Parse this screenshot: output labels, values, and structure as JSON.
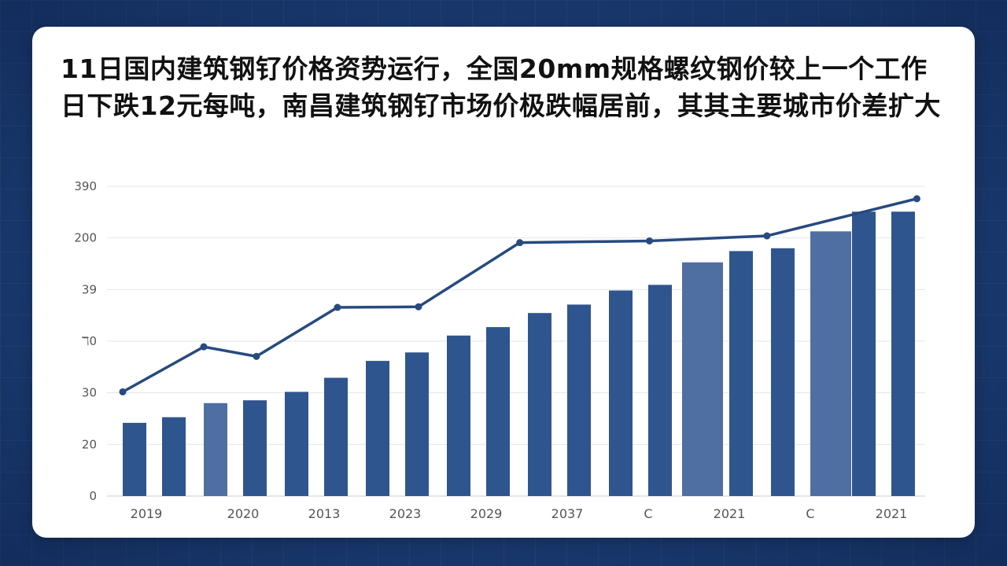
{
  "title": "11日国内建筑钢钌价格资势运行，全国20mm规格螺纹钢价较上一个工作日下跌12元每吨，南昌建筑钢钌市场价极跌幅居前，其其主要城市价差扩大",
  "colors": {
    "background": "#1d3f77",
    "bar": "#2f558f",
    "bar_light": "#4f6fa3",
    "line": "#274a80",
    "grid": "#e3e6eb"
  },
  "chart_data": {
    "type": "bar",
    "y_tick_labels": [
      "0",
      "20",
      "30",
      "ℸ0",
      "39",
      "200",
      "390"
    ],
    "x_tick_labels": [
      "2019",
      "2020",
      "2013",
      "2023",
      "2029",
      "2037",
      "C",
      "2021",
      "C",
      "2021"
    ],
    "bar_values": [
      13,
      14,
      16.5,
      17,
      18.5,
      21,
      24,
      25.5,
      28.5,
      30,
      32.5,
      34,
      36.5,
      37.5,
      41.5,
      43.5,
      44,
      47,
      50.5,
      50.5
    ],
    "bar_highlight": [
      false,
      false,
      true,
      false,
      false,
      false,
      false,
      false,
      false,
      false,
      false,
      false,
      false,
      false,
      true,
      false,
      false,
      true,
      false,
      false
    ],
    "line_points": [
      {
        "x": 1,
        "y": 18.5
      },
      {
        "x": 3,
        "y": 26.5
      },
      {
        "x": 4.3,
        "y": 24.8
      },
      {
        "x": 6.3,
        "y": 33.5
      },
      {
        "x": 8.3,
        "y": 33.6
      },
      {
        "x": 10.8,
        "y": 45
      },
      {
        "x": 14,
        "y": 45.3
      },
      {
        "x": 16.9,
        "y": 46.2
      },
      {
        "x": 20.6,
        "y": 52.8
      }
    ],
    "ylim": [
      0,
      55
    ],
    "grid": true
  }
}
